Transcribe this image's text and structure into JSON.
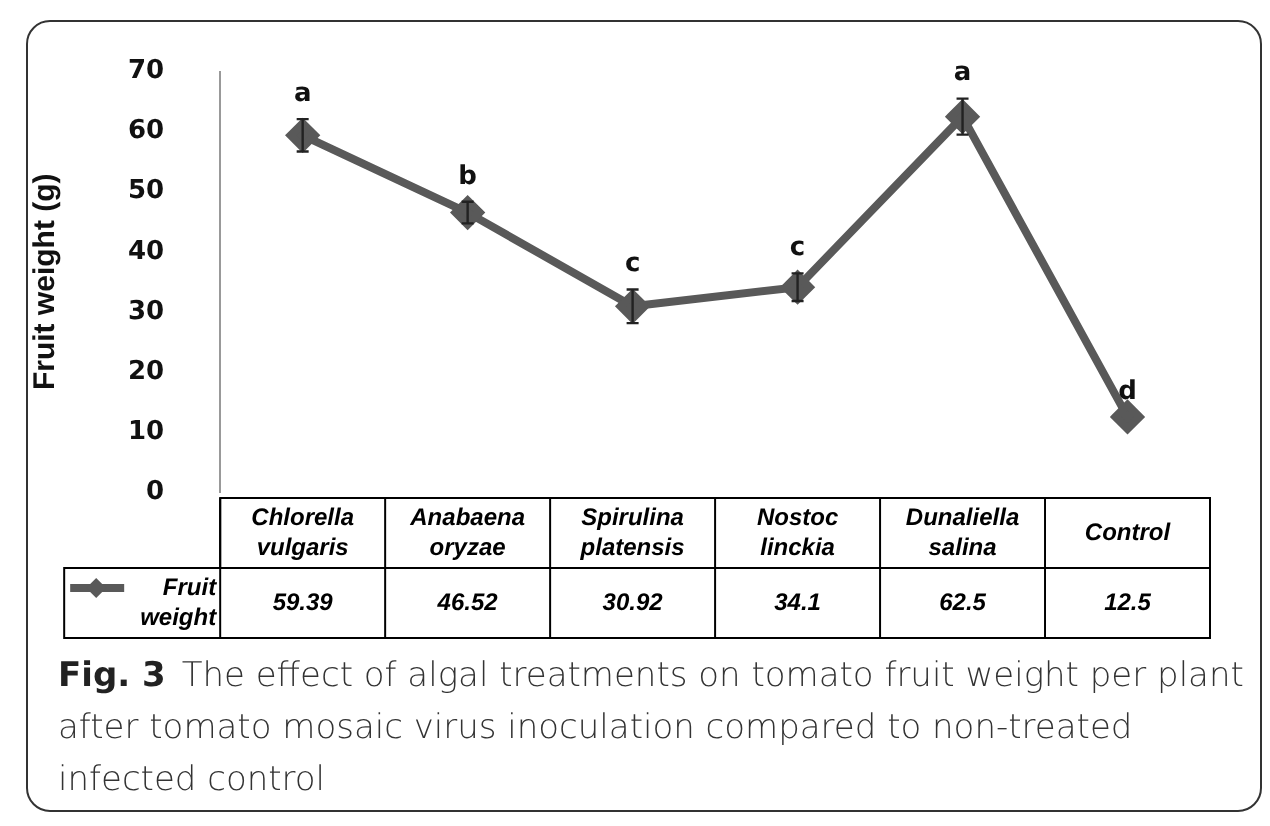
{
  "chart_data": {
    "type": "line",
    "ylabel": "Fruit weight (g)",
    "categories": [
      "Chlorella vulgaris",
      "Anabaena oryzae",
      "Spirulina platensis",
      "Nostoc linckia",
      "Dunaliella salina",
      "Control"
    ],
    "series": [
      {
        "name": "Fruit weight",
        "color": "#595959",
        "values": [
          59.39,
          46.52,
          30.92,
          34.1,
          62.5,
          12.5
        ],
        "errors": [
          2.7,
          1.8,
          2.8,
          2.3,
          3,
          null
        ]
      }
    ],
    "ylim": [
      0,
      70
    ],
    "yticks": [
      0,
      10,
      20,
      30,
      40,
      50,
      60,
      70
    ],
    "grid": false,
    "legend": "bottom",
    "marker": "diamond",
    "line_style": "solid",
    "data_labels": true,
    "annotations": [
      {
        "text": "a",
        "x": "Chlorella vulgaris",
        "y": 59.39
      },
      {
        "text": "b",
        "x": "Anabaena oryzae",
        "y": 46.52
      },
      {
        "text": "c",
        "x": "Spirulina platensis",
        "y": 30.92
      },
      {
        "text": "c",
        "x": "Nostoc linckia",
        "y": 34.1
      },
      {
        "text": "a",
        "x": "Dunaliella salina",
        "y": 62.5
      },
      {
        "text": "d",
        "x": "Control",
        "y": 12.5
      },
      "Fig. 3",
      "The effect of algal treatments on tomato fruit weight per plant after tomato mosaic virus inoculation compared to non-treated infected control"
    ]
  }
}
